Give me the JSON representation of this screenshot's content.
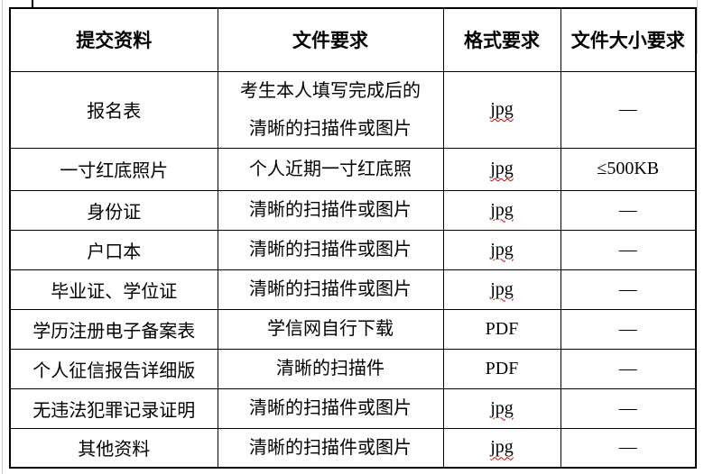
{
  "table": {
    "headers": [
      "提交资料",
      "文件要求",
      "格式要求",
      "文件大小要求"
    ],
    "rows": [
      {
        "material": "报名表",
        "requirement_lines": [
          "考生本人填写完成后的",
          "清晰的扫描件或图片"
        ],
        "format": "jpg",
        "format_spellcheck": true,
        "size": "—"
      },
      {
        "material": "一寸红底照片",
        "requirement_lines": [
          "个人近期一寸红底照"
        ],
        "format": "jpg",
        "format_spellcheck": true,
        "size": "≤500KB"
      },
      {
        "material": "身份证",
        "requirement_lines": [
          "清晰的扫描件或图片"
        ],
        "format": "jpg",
        "format_spellcheck": true,
        "size": "—"
      },
      {
        "material": "户口本",
        "requirement_lines": [
          "清晰的扫描件或图片"
        ],
        "format": "jpg",
        "format_spellcheck": true,
        "size": "—"
      },
      {
        "material": "毕业证、学位证",
        "requirement_lines": [
          "清晰的扫描件或图片"
        ],
        "format": "jpg",
        "format_spellcheck": true,
        "size": "—"
      },
      {
        "material": "学历注册电子备案表",
        "requirement_lines": [
          "学信网自行下载"
        ],
        "format": "PDF",
        "format_spellcheck": false,
        "size": "—"
      },
      {
        "material": "个人征信报告详细版",
        "requirement_lines": [
          "清晰的扫描件"
        ],
        "format": "PDF",
        "format_spellcheck": false,
        "size": "—"
      },
      {
        "material": "无违法犯罪记录证明",
        "requirement_lines": [
          "清晰的扫描件或图片"
        ],
        "format": "jpg",
        "format_spellcheck": true,
        "size": "—"
      },
      {
        "material": "其他资料",
        "requirement_lines": [
          "清晰的扫描件或图片"
        ],
        "format": "jpg",
        "format_spellcheck": true,
        "size": "—"
      }
    ]
  },
  "colors": {
    "border": "#000000",
    "text": "#000000",
    "spellcheck_underline": "#d40000",
    "edge_mark": "#c9c9c9",
    "background": "#ffffff"
  }
}
